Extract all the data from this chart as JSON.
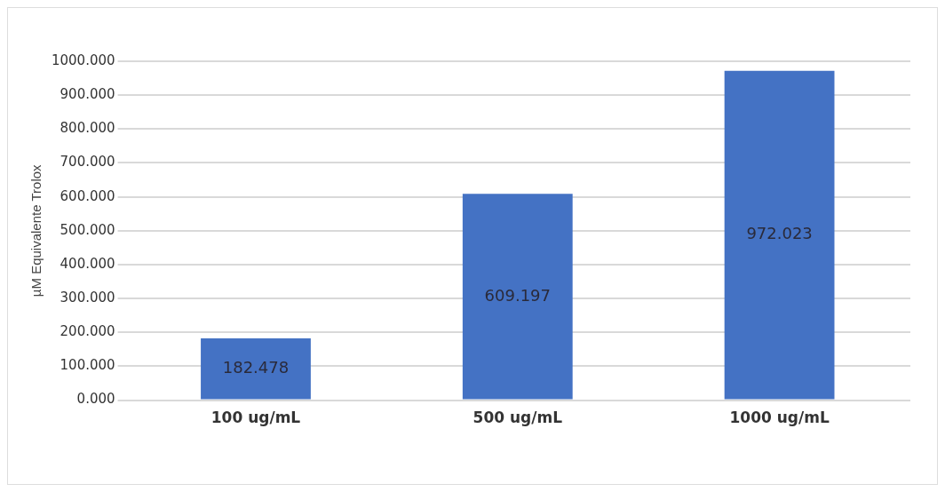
{
  "chart_data": {
    "type": "bar",
    "ylabel": "µM Equivalente Trolox",
    "categories": [
      "100 ug/mL",
      "500 ug/mL",
      "1000 ug/mL"
    ],
    "values": [
      182.478,
      609.197,
      972.023
    ],
    "color": "#4472c4",
    "ylim": [
      0,
      1000
    ],
    "yticks": [
      {
        "value": 0,
        "label": "0.000"
      },
      {
        "value": 100,
        "label": "100.000"
      },
      {
        "value": 200,
        "label": "200.000"
      },
      {
        "value": 300,
        "label": "300.000"
      },
      {
        "value": 400,
        "label": "400.000"
      },
      {
        "value": 500,
        "label": "500.000"
      },
      {
        "value": 600,
        "label": "600.000"
      },
      {
        "value": 700,
        "label": "700.000"
      },
      {
        "value": 800,
        "label": "800.000"
      },
      {
        "value": 900,
        "label": "900.000"
      },
      {
        "value": 1000,
        "label": "1000.000"
      }
    ],
    "grid": "y",
    "legend": false,
    "data_labels": true
  }
}
